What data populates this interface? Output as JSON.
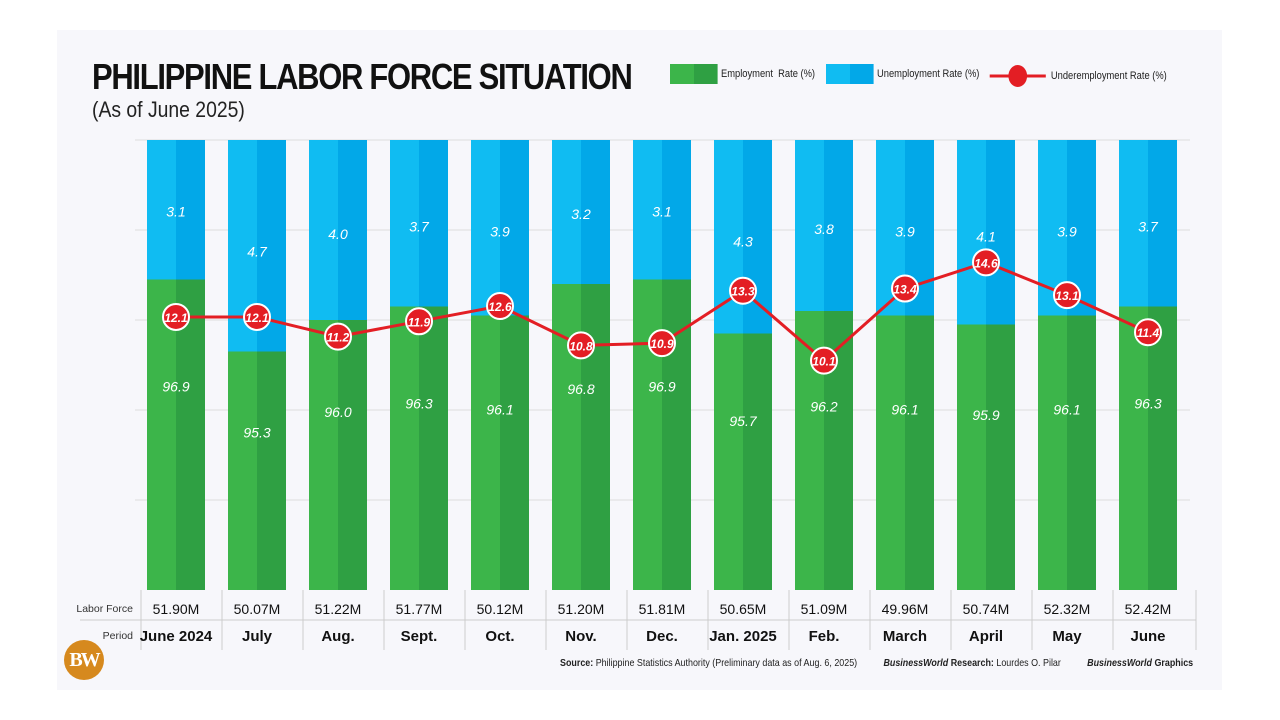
{
  "chart_data": {
    "type": "bar",
    "title": "PHILIPPINE LABOR FORCE SITUATION",
    "subtitle": "(As of June 2025)",
    "categories": [
      "June 2024",
      "July",
      "Aug.",
      "Sept.",
      "Oct.",
      "Nov.",
      "Dec.",
      "Jan. 2025",
      "Feb.",
      "March",
      "April",
      "May",
      "June"
    ],
    "series": [
      {
        "name": "Employment  Rate (%)",
        "type": "stacked-bar",
        "color": "#3cb54a",
        "values": [
          96.9,
          95.3,
          96.0,
          96.3,
          96.1,
          96.8,
          96.9,
          95.7,
          96.2,
          96.1,
          95.9,
          96.1,
          96.3
        ]
      },
      {
        "name": "Unemployment Rate (%)",
        "type": "stacked-bar",
        "color": "#10b9f0",
        "values": [
          3.1,
          4.7,
          4.0,
          3.7,
          3.9,
          3.2,
          3.1,
          4.3,
          3.8,
          3.9,
          4.1,
          3.9,
          3.7
        ]
      },
      {
        "name": "Underemployment Rate (%)",
        "type": "line",
        "color": "#e31e24",
        "values": [
          12.1,
          12.1,
          11.2,
          11.9,
          12.6,
          10.8,
          10.9,
          13.3,
          10.1,
          13.4,
          14.6,
          13.1,
          11.4
        ]
      }
    ],
    "ylim": [
      90,
      100
    ],
    "ylim_line": [
      -0.4,
      20.2
    ],
    "grid": true,
    "legend": "top-right",
    "table": {
      "row_labels": [
        "Labor Force",
        "Period"
      ],
      "labor_force": [
        "51.90M",
        "50.07M",
        "51.22M",
        "51.77M",
        "50.12M",
        "51.20M",
        "51.81M",
        "50.65M",
        "51.09M",
        "49.96M",
        "50.74M",
        "52.32M",
        "52.42M"
      ]
    }
  },
  "footer": {
    "source_label": "Source:",
    "source_text": " Philippine Statistics Authority (Preliminary data as of Aug. 6, 2025)",
    "research_brand": "BusinessWorld",
    "research_label": " Research:",
    "research_name": " Lourdes O. Pilar",
    "graphics_brand": "BusinessWorld",
    "graphics_label": " Graphics",
    "logo": "BW"
  }
}
